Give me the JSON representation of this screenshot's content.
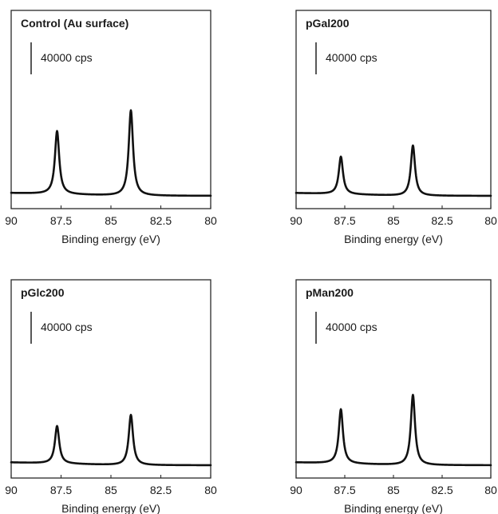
{
  "chart_data": [
    {
      "type": "line",
      "title": "Control (Au surface)",
      "xlabel": "Binding energy (eV)",
      "ylabel": "",
      "xlim": [
        90,
        80
      ],
      "x_reversed": true,
      "x_ticks": [
        "90",
        "87.5",
        "85",
        "82.5",
        "80"
      ],
      "x_tick_values": [
        90,
        87.5,
        85,
        82.5,
        80
      ],
      "scale_bar": "40000 cps",
      "scale_bar_cps": 40000,
      "series": [
        {
          "peaks": [
            {
              "x": 87.7,
              "height": 79000
            },
            {
              "x": 84.0,
              "height": 107000
            }
          ]
        }
      ]
    },
    {
      "type": "line",
      "title": "pGal200",
      "xlabel": "Binding energy (eV)",
      "ylabel": "",
      "xlim": [
        90,
        80
      ],
      "x_reversed": true,
      "x_ticks": [
        "90",
        "87.5",
        "85",
        "82.5",
        "80"
      ],
      "x_tick_values": [
        90,
        87.5,
        85,
        82.5,
        80
      ],
      "scale_bar": "40000 cps",
      "scale_bar_cps": 40000,
      "series": [
        {
          "peaks": [
            {
              "x": 87.7,
              "height": 47000
            },
            {
              "x": 84.0,
              "height": 63000
            }
          ]
        }
      ]
    },
    {
      "type": "line",
      "title": "pGlc200",
      "xlabel": "Binding energy (eV)",
      "ylabel": "",
      "xlim": [
        90,
        80
      ],
      "x_reversed": true,
      "x_ticks": [
        "90",
        "87.5",
        "85",
        "82.5",
        "80"
      ],
      "x_tick_values": [
        90,
        87.5,
        85,
        82.5,
        80
      ],
      "scale_bar": "40000 cps",
      "scale_bar_cps": 40000,
      "series": [
        {
          "peaks": [
            {
              "x": 87.7,
              "height": 47000
            },
            {
              "x": 84.0,
              "height": 63000
            }
          ]
        }
      ]
    },
    {
      "type": "line",
      "title": "pMan200",
      "xlabel": "Binding energy (eV)",
      "ylabel": "",
      "xlim": [
        90,
        80
      ],
      "x_reversed": true,
      "x_ticks": [
        "90",
        "87.5",
        "85",
        "82.5",
        "80"
      ],
      "x_tick_values": [
        90,
        87.5,
        85,
        82.5,
        80
      ],
      "scale_bar": "40000 cps",
      "scale_bar_cps": 40000,
      "series": [
        {
          "peaks": [
            {
              "x": 87.7,
              "height": 68000
            },
            {
              "x": 84.0,
              "height": 88000
            }
          ]
        }
      ]
    }
  ]
}
